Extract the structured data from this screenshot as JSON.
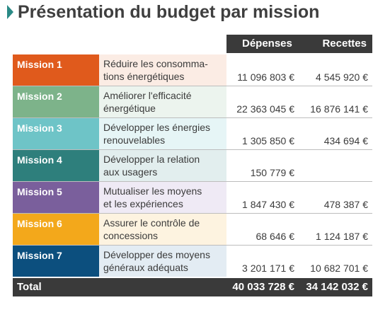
{
  "title": "Présentation du budget par mission",
  "headers": {
    "depenses": "Dépenses",
    "recettes": "Recettes"
  },
  "missions": [
    {
      "name": "Mission 1",
      "desc1": "Réduire les consomma-",
      "desc2": "tions énergétiques",
      "depenses": "11 096 803 €",
      "recettes": "4 545 920 €",
      "color": "#e05a1c",
      "tint": "#fbece4"
    },
    {
      "name": "Mission 2",
      "desc1": "Améliorer l'efficacité",
      "desc2": "énergétique",
      "depenses": "22 363 045 €",
      "recettes": "16 876 141 €",
      "color": "#7db38a",
      "tint": "#ecf4ee"
    },
    {
      "name": "Mission 3",
      "desc1": "Développer les énergies",
      "desc2": "renouvelables",
      "depenses": "1 305 850 €",
      "recettes": "434 694 €",
      "color": "#6ec4c7",
      "tint": "#e6f5f6"
    },
    {
      "name": "Mission 4",
      "desc1": "Développer la relation",
      "desc2": "aux usagers",
      "depenses": "150 779 €",
      "recettes": "",
      "color": "#2e7f7c",
      "tint": "#e2eeee"
    },
    {
      "name": "Mission 5",
      "desc1": "Mutualiser les moyens",
      "desc2": "et les expériences",
      "depenses": "1 847 430 €",
      "recettes": "478 387 €",
      "color": "#7a5f9c",
      "tint": "#efeaf5"
    },
    {
      "name": "Mission 6",
      "desc1": "Assurer le contrôle de",
      "desc2": "concessions",
      "depenses": "68 646 €",
      "recettes": "1 124 187 €",
      "color": "#f3a81b",
      "tint": "#fdf3e0"
    },
    {
      "name": "Mission 7",
      "desc1": "Développer des moyens",
      "desc2": "généraux adéquats",
      "depenses": "3 201 171 €",
      "recettes": "10 682 701 €",
      "color": "#0c4f7e",
      "tint": "#e3ecf3"
    }
  ],
  "total": {
    "label": "Total",
    "depenses": "40 033 728 €",
    "recettes": "34 142 032 €"
  }
}
